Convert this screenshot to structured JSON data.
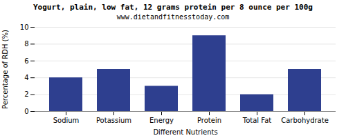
{
  "chart_data": {
    "type": "bar",
    "title": "Yogurt, plain, low fat, 12 grams protein per 8 ounce per 100g",
    "subtitle": "www.dietandfitnesstoday.com",
    "categories": [
      "Sodium",
      "Potassium",
      "Energy",
      "Protein",
      "Total Fat",
      "Carbohydrate"
    ],
    "values": [
      4.0,
      5.0,
      3.0,
      9.0,
      2.0,
      5.0
    ],
    "color": "#2e3f8f",
    "xlabel": "Different Nutrients",
    "ylabel": "Percentage of RDH (%)",
    "ylim": [
      0,
      10
    ],
    "yticks": [
      0,
      2,
      4,
      6,
      8,
      10
    ],
    "grid": true
  }
}
